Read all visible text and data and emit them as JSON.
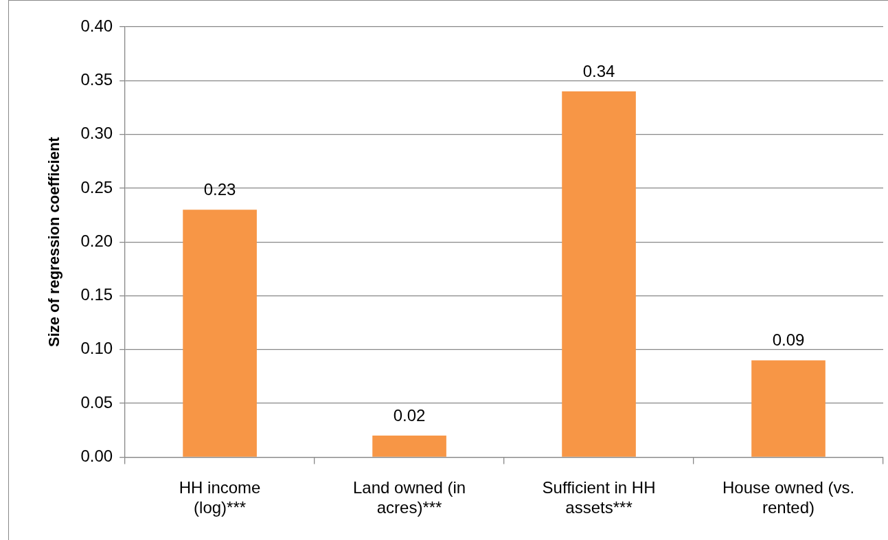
{
  "chart_data": {
    "type": "bar",
    "ylabel": "Size of regression coefficient",
    "categories": [
      "HH income (log)***",
      "Land owned (in acres)***",
      "Sufficient in HH assets***",
      "House owned (vs. rented)"
    ],
    "values": [
      0.23,
      0.02,
      0.34,
      0.09
    ],
    "color": "#f79646",
    "ylim": [
      0,
      0.4
    ],
    "yticks": [
      {
        "value": 0,
        "label": "0.00"
      },
      {
        "value": 0.05,
        "label": "0.05"
      },
      {
        "value": 0.1,
        "label": "0.10"
      },
      {
        "value": 0.15,
        "label": "0.15"
      },
      {
        "value": 0.2,
        "label": "0.20"
      },
      {
        "value": 0.25,
        "label": "0.25"
      },
      {
        "value": 0.3,
        "label": "0.30"
      },
      {
        "value": 0.35,
        "label": "0.35"
      },
      {
        "value": 0.4,
        "label": "0.40"
      }
    ],
    "grid": "y",
    "data_labels": true
  }
}
